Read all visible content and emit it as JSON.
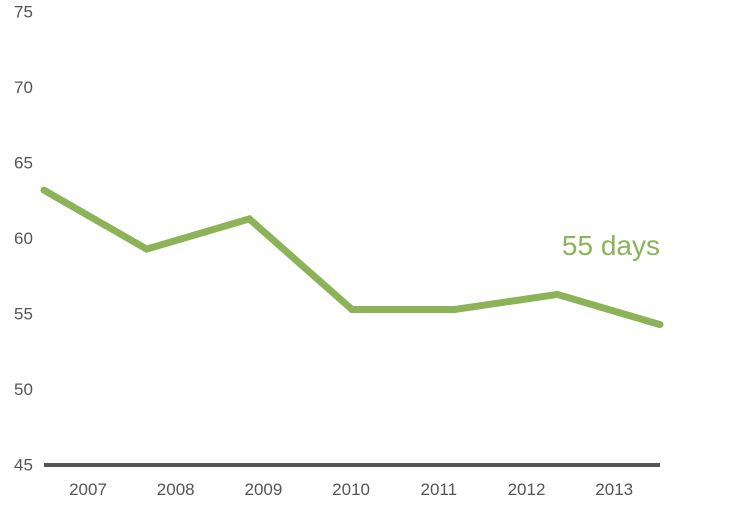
{
  "chart_data": {
    "type": "line",
    "title": "",
    "xlabel": "",
    "ylabel": "",
    "x": [
      "2007",
      "2008",
      "2009",
      "2010",
      "2011",
      "2012",
      "2013"
    ],
    "series": [
      {
        "values": [
          63.2,
          59.3,
          61.3,
          55.3,
          55.3,
          56.3,
          54.3
        ],
        "color": "#8db358"
      }
    ],
    "ylim": [
      45,
      75
    ],
    "yticks": [
      "75",
      "70",
      "65",
      "60",
      "55",
      "50",
      "45"
    ],
    "grid": false,
    "baseline_color": "#555555",
    "annotation": {
      "text": "55 days",
      "color": "#8db358"
    }
  }
}
